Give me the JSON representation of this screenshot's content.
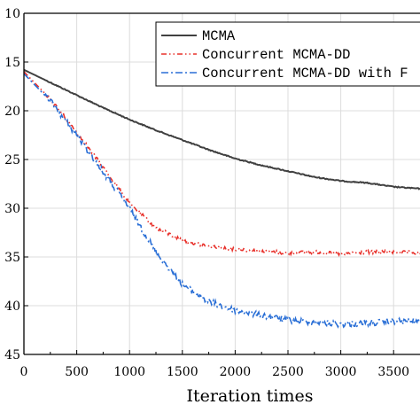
{
  "chart_data": {
    "type": "line",
    "title": "",
    "xlabel": "Iteration times",
    "ylabel": "",
    "xlim": [
      0,
      3750
    ],
    "ylim": [
      10,
      45
    ],
    "y_inverted": true,
    "grid": true,
    "legend_placement": "top-right",
    "x_ticks": [
      "0",
      "500",
      "1000",
      "1500",
      "2000",
      "2500",
      "3000",
      "3500"
    ],
    "y_ticks": [
      "10",
      "15",
      "20",
      "25",
      "30",
      "35",
      "40",
      "45"
    ],
    "series": [
      {
        "name": "MCMA",
        "color": "#404040",
        "style": "solid",
        "x": [
          0,
          250,
          500,
          750,
          1000,
          1250,
          1500,
          1750,
          2000,
          2250,
          2500,
          2750,
          3000,
          3250,
          3500,
          3750
        ],
        "y": [
          15.8,
          17.1,
          18.4,
          19.7,
          20.9,
          22.0,
          23.0,
          24.0,
          24.9,
          25.6,
          26.2,
          26.8,
          27.2,
          27.4,
          27.8,
          28.0
        ]
      },
      {
        "name": "Concurrent MCMA-DD",
        "color": "#e8302a",
        "style": "dash-dot-dot",
        "x": [
          0,
          250,
          500,
          750,
          1000,
          1250,
          1500,
          1750,
          2000,
          2250,
          2500,
          2750,
          3000,
          3250,
          3500,
          3750
        ],
        "y": [
          16.0,
          18.8,
          22.2,
          25.8,
          29.5,
          32.0,
          33.3,
          33.9,
          34.2,
          34.4,
          34.6,
          34.5,
          34.7,
          34.5,
          34.5,
          34.6
        ]
      },
      {
        "name": "Concurrent MCMA-DD with F",
        "color": "#2a6fd6",
        "style": "dash-dot",
        "x": [
          0,
          250,
          500,
          750,
          1000,
          1250,
          1500,
          1750,
          2000,
          2250,
          2500,
          2750,
          3000,
          3250,
          3500,
          3750
        ],
        "y": [
          16.2,
          19.0,
          22.5,
          26.3,
          30.0,
          34.5,
          37.8,
          39.6,
          40.5,
          41.0,
          41.5,
          41.7,
          41.9,
          41.8,
          41.6,
          41.6
        ]
      }
    ]
  }
}
